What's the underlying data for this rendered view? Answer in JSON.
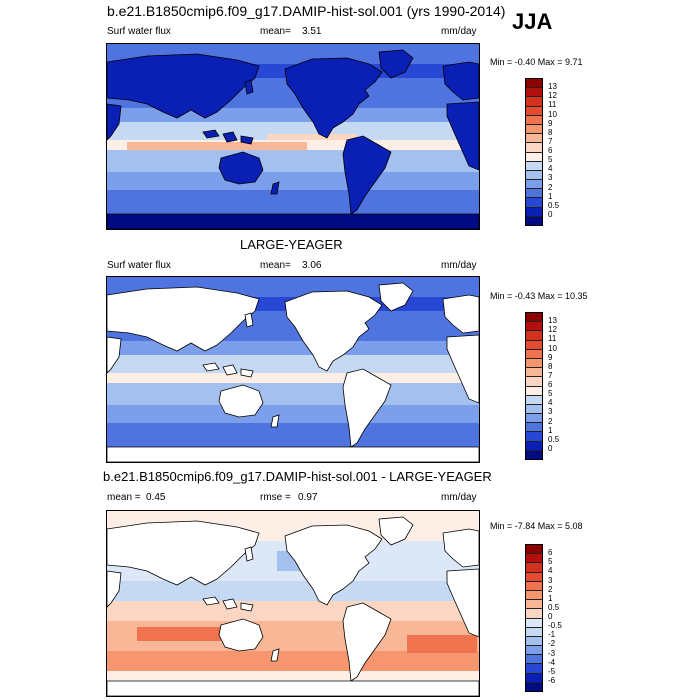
{
  "header": {
    "title": "b.e21.B1850cmip6.f09_g17.DAMIP-hist-sol.001 (yrs 1990-2014)",
    "season": "JJA"
  },
  "panels": [
    {
      "id": "case",
      "title": "",
      "left_label": "Surf water flux",
      "stat_label": "mean=",
      "stat_value": "3.51",
      "second_stat_label": "",
      "second_stat_value": "",
      "units": "mm/day",
      "min_text": "Min =  -0.40 Max =   9.71",
      "land_masked": false,
      "colorbar": {
        "labels": [
          "13",
          "12",
          "11",
          "10",
          "9",
          "8",
          "7",
          "6",
          "5",
          "4",
          "3",
          "2",
          "1",
          "0.5",
          "0"
        ],
        "colors": [
          "#8c0000",
          "#b40f0f",
          "#d2321e",
          "#e64b32",
          "#f07350",
          "#f5966e",
          "#f8b796",
          "#fbd6c2",
          "#fdefe6",
          "#c6d9f3",
          "#a4c0ee",
          "#7b9fea",
          "#4f74e0",
          "#2747d4",
          "#0a1fb4",
          "#000a82"
        ]
      }
    },
    {
      "id": "obs",
      "title": "LARGE-YEAGER",
      "left_label": "Surf water flux",
      "stat_label": "mean=",
      "stat_value": "3.06",
      "second_stat_label": "",
      "second_stat_value": "",
      "units": "mm/day",
      "min_text": "Min =  -0.43 Max =  10.35",
      "land_masked": true,
      "colorbar": {
        "labels": [
          "13",
          "12",
          "11",
          "10",
          "9",
          "8",
          "7",
          "6",
          "5",
          "4",
          "3",
          "2",
          "1",
          "0.5",
          "0"
        ],
        "colors": [
          "#8c0000",
          "#b40f0f",
          "#d2321e",
          "#e64b32",
          "#f07350",
          "#f5966e",
          "#f8b796",
          "#fbd6c2",
          "#fdefe6",
          "#c6d9f3",
          "#a4c0ee",
          "#7b9fea",
          "#4f74e0",
          "#2747d4",
          "#0a1fb4",
          "#000a82"
        ]
      }
    },
    {
      "id": "diff",
      "title": "b.e21.B1850cmip6.f09_g17.DAMIP-hist-sol.001 - LARGE-YEAGER",
      "left_label": "",
      "stat_label": "mean =",
      "stat_value": "0.45",
      "second_stat_label": "rmse =",
      "second_stat_value": "0.97",
      "units": "mm/day",
      "min_text": "Min =  -7.84 Max =   5.08",
      "land_masked": true,
      "colorbar": {
        "labels": [
          "6",
          "5",
          "4",
          "3",
          "2",
          "1",
          "0.5",
          "0",
          "-0.5",
          "-1",
          "-2",
          "-3",
          "-4",
          "-5",
          "-6"
        ],
        "colors": [
          "#8c0000",
          "#b40f0f",
          "#d2321e",
          "#e64b32",
          "#f07350",
          "#f5966e",
          "#f8b796",
          "#fbd6c2",
          "#dce8f8",
          "#c6d9f3",
          "#a4c0ee",
          "#7b9fea",
          "#4f74e0",
          "#2747d4",
          "#0a1fb4",
          "#000a82"
        ]
      }
    }
  ]
}
